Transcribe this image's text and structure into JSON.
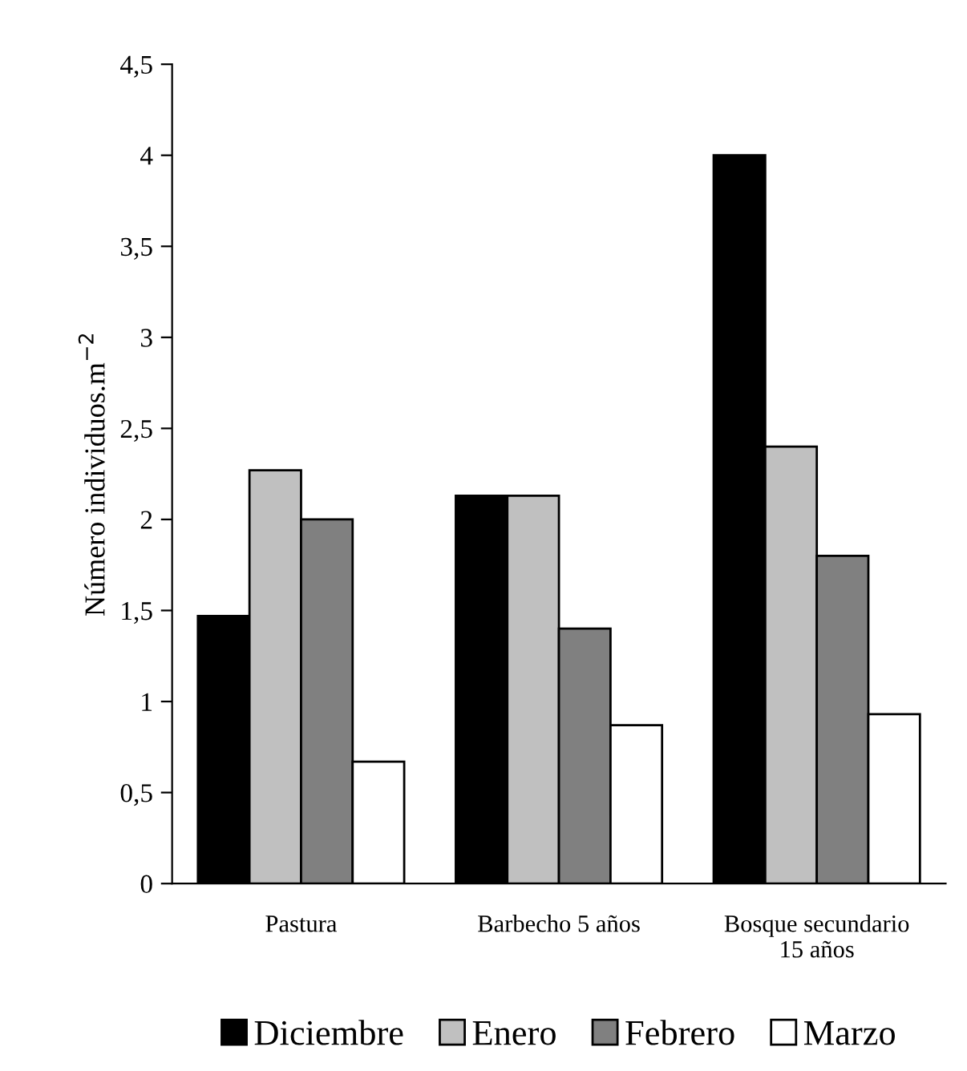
{
  "chart_data": {
    "type": "bar",
    "ylabel": "Número individuos.m$^{−2}$",
    "categories": [
      "Pastura",
      "Barbecho 5 años",
      "Bosque secundario\n15 años"
    ],
    "series": [
      {
        "name": "Diciembre",
        "color": "#000000",
        "values": [
          1.47,
          2.13,
          4.0
        ]
      },
      {
        "name": "Enero",
        "color": "#c0c0c0",
        "values": [
          2.27,
          2.13,
          2.4
        ]
      },
      {
        "name": "Febrero",
        "color": "#808080",
        "values": [
          2.0,
          1.4,
          1.8
        ]
      },
      {
        "name": "Marzo",
        "color": "#ffffff",
        "values": [
          0.67,
          0.87,
          0.93
        ]
      }
    ],
    "ylim": [
      0,
      4.5
    ],
    "yticks": [
      0,
      {
        "value": 0.5,
        "label": "0,5"
      },
      1,
      {
        "value": 1.5,
        "label": "1,5"
      },
      2,
      {
        "value": 2.5,
        "label": "2,5"
      },
      3,
      {
        "value": 3.5,
        "label": "3,5"
      },
      4,
      {
        "value": 4.5,
        "label": "4,5"
      }
    ],
    "grid": false,
    "legend": "bottom"
  }
}
